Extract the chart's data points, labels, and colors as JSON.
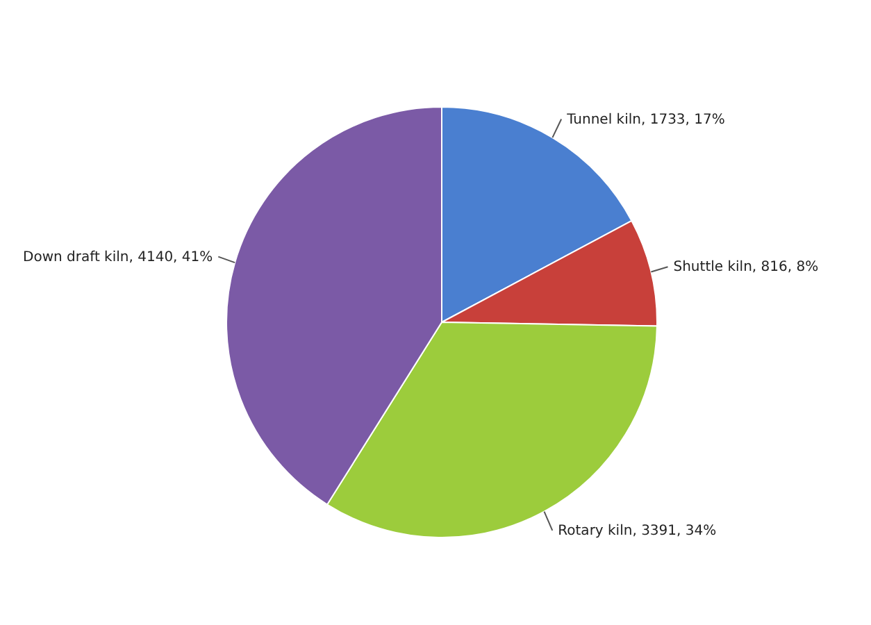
{
  "chart_data": {
    "type": "pie",
    "categories": [
      "Tunnel kiln",
      "Shuttle kiln",
      "Rotary kiln",
      "Down draft kiln"
    ],
    "values": [
      1733,
      816,
      3391,
      4140
    ],
    "colors": [
      "#4a7fd0",
      "#c8403a",
      "#9ccc3c",
      "#7b5aa6"
    ],
    "value_labels": [
      "1733, 17%",
      "816, 8%",
      "3391, 34%",
      "4140, 41%"
    ]
  }
}
